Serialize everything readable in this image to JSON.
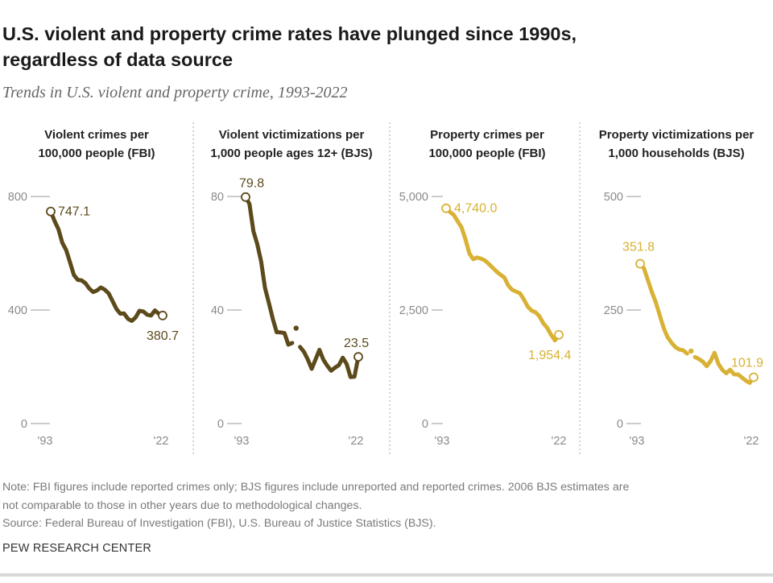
{
  "header": {
    "title_line1": "U.S. violent and property crime rates have plunged since 1990s,",
    "title_line2": "regardless of data source",
    "subtitle": "Trends in U.S. violent and property crime, 1993-2022"
  },
  "colors": {
    "violent": "#5c4a1b",
    "property": "#d8b135",
    "axis": "#9a9a9a",
    "divider": "#aaaaaa"
  },
  "footer": {
    "note_line1": "Note: FBI figures include reported crimes only; BJS figures include unreported and reported crimes. 2006 BJS estimates are",
    "note_line2": "not comparable to those in other years due to methodological changes.",
    "source": "Source: Federal Bureau of Investigation (FBI), U.S. Bureau of Justice Statistics (BJS).",
    "brand": "PEW RESEARCH CENTER"
  },
  "chart_data": [
    {
      "type": "line",
      "title_line1": "Violent crimes per",
      "title_line2": "100,000 people (FBI)",
      "color_key": "violent",
      "xlim": [
        1993,
        2022
      ],
      "x_ticks": [
        "'93",
        "'22"
      ],
      "ylim": [
        0,
        800
      ],
      "y_ticks": [
        {
          "value": 0,
          "label": "0"
        },
        {
          "value": 400,
          "label": "400"
        },
        {
          "value": 800,
          "label": "800"
        }
      ],
      "start_label": "747.1",
      "end_label": "380.7",
      "segments": [
        [
          [
            1993,
            747.1
          ],
          [
            1994,
            713.6
          ],
          [
            1995,
            684.5
          ],
          [
            1996,
            636.6
          ],
          [
            1997,
            611.0
          ],
          [
            1998,
            567.6
          ],
          [
            1999,
            523.0
          ],
          [
            2000,
            506.5
          ],
          [
            2001,
            504.5
          ],
          [
            2002,
            494.4
          ],
          [
            2003,
            475.8
          ],
          [
            2004,
            463.2
          ],
          [
            2005,
            469.0
          ],
          [
            2006,
            479.3
          ],
          [
            2007,
            471.8
          ],
          [
            2008,
            458.6
          ],
          [
            2009,
            431.9
          ],
          [
            2010,
            404.5
          ],
          [
            2011,
            387.1
          ],
          [
            2012,
            387.8
          ],
          [
            2013,
            369.1
          ],
          [
            2014,
            361.6
          ],
          [
            2015,
            373.7
          ],
          [
            2016,
            397.5
          ],
          [
            2017,
            394.9
          ],
          [
            2018,
            383.4
          ],
          [
            2019,
            380.8
          ],
          [
            2020,
            398.5
          ],
          [
            2021,
            387.0
          ],
          [
            2022,
            380.7
          ]
        ]
      ]
    },
    {
      "type": "line",
      "title_line1": "Violent victimizations per",
      "title_line2": "1,000 people ages 12+ (BJS)",
      "color_key": "violent",
      "xlim": [
        1993,
        2022
      ],
      "x_ticks": [
        "'93",
        "'22"
      ],
      "ylim": [
        0,
        80
      ],
      "y_ticks": [
        {
          "value": 0,
          "label": "0"
        },
        {
          "value": 40,
          "label": "40"
        },
        {
          "value": 80,
          "label": "80"
        }
      ],
      "start_label": "79.8",
      "end_label": "23.5",
      "segments": [
        [
          [
            1993,
            79.8
          ],
          [
            1994,
            77.4
          ],
          [
            1995,
            67.8
          ],
          [
            1996,
            63.2
          ],
          [
            1997,
            57.1
          ],
          [
            1998,
            47.8
          ],
          [
            1999,
            42.4
          ],
          [
            2000,
            36.9
          ],
          [
            2001,
            32.2
          ],
          [
            2002,
            32.1
          ],
          [
            2003,
            31.9
          ],
          [
            2004,
            27.8
          ],
          [
            2005,
            28.4
          ]
        ],
        [
          [
            2006,
            33.6
          ]
        ],
        [
          [
            2007,
            27.0
          ],
          [
            2008,
            25.3
          ],
          [
            2009,
            22.6
          ],
          [
            2010,
            19.3
          ],
          [
            2011,
            22.6
          ],
          [
            2012,
            26.0
          ],
          [
            2013,
            22.5
          ],
          [
            2014,
            20.4
          ],
          [
            2015,
            18.6
          ],
          [
            2016,
            19.7
          ],
          [
            2017,
            20.6
          ],
          [
            2018,
            23.2
          ],
          [
            2019,
            21.0
          ],
          [
            2020,
            16.4
          ],
          [
            2021,
            16.5
          ],
          [
            2022,
            23.5
          ]
        ]
      ]
    },
    {
      "type": "line",
      "title_line1": "Property crimes per",
      "title_line2": "100,000 people (FBI)",
      "color_key": "property",
      "xlim": [
        1993,
        2022
      ],
      "x_ticks": [
        "'93",
        "'22"
      ],
      "ylim": [
        0,
        5000
      ],
      "y_ticks": [
        {
          "value": 0,
          "label": "0"
        },
        {
          "value": 2500,
          "label": "2,500"
        },
        {
          "value": 5000,
          "label": "5,000"
        }
      ],
      "start_label": "4,740.0",
      "end_label": "1,954.4",
      "segments": [
        [
          [
            1993,
            4740.0
          ],
          [
            1994,
            4660.2
          ],
          [
            1995,
            4590.5
          ],
          [
            1996,
            4451.0
          ],
          [
            1997,
            4316.3
          ],
          [
            1998,
            4052.5
          ],
          [
            1999,
            3743.6
          ],
          [
            2000,
            3618.3
          ],
          [
            2001,
            3658.1
          ],
          [
            2002,
            3630.6
          ],
          [
            2003,
            3591.2
          ],
          [
            2004,
            3514.1
          ],
          [
            2005,
            3431.5
          ],
          [
            2006,
            3346.6
          ],
          [
            2007,
            3276.4
          ],
          [
            2008,
            3214.6
          ],
          [
            2009,
            3041.3
          ],
          [
            2010,
            2945.9
          ],
          [
            2011,
            2905.4
          ],
          [
            2012,
            2868.0
          ],
          [
            2013,
            2733.6
          ],
          [
            2014,
            2574.1
          ],
          [
            2015,
            2487.0
          ],
          [
            2016,
            2450.7
          ],
          [
            2017,
            2362.2
          ],
          [
            2018,
            2209.8
          ],
          [
            2019,
            2109.9
          ],
          [
            2020,
            1958.2
          ],
          [
            2021,
            1832.3
          ],
          [
            2022,
            1954.4
          ]
        ]
      ]
    },
    {
      "type": "line",
      "title_line1": "Property victimizations per",
      "title_line2": "1,000 households (BJS)",
      "color_key": "property",
      "xlim": [
        1993,
        2022
      ],
      "x_ticks": [
        "'93",
        "'22"
      ],
      "ylim": [
        0,
        500
      ],
      "y_ticks": [
        {
          "value": 0,
          "label": "0"
        },
        {
          "value": 250,
          "label": "250"
        },
        {
          "value": 500,
          "label": "500"
        }
      ],
      "start_label": "351.8",
      "end_label": "101.9",
      "segments": [
        [
          [
            1993,
            351.8
          ],
          [
            1994,
            341.2
          ],
          [
            1995,
            315.5
          ],
          [
            1996,
            289.3
          ],
          [
            1997,
            267.2
          ],
          [
            1998,
            238.9
          ],
          [
            1999,
            210.6
          ],
          [
            2000,
            190.4
          ],
          [
            2001,
            178.1
          ],
          [
            2002,
            168.2
          ],
          [
            2003,
            163.2
          ],
          [
            2004,
            161.1
          ],
          [
            2005,
            154.0
          ]
        ],
        [
          [
            2006,
            159.5
          ]
        ],
        [
          [
            2007,
            146.5
          ],
          [
            2008,
            142.4
          ],
          [
            2009,
            136.1
          ],
          [
            2010,
            126.5
          ],
          [
            2011,
            137.6
          ],
          [
            2012,
            155.8
          ],
          [
            2013,
            131.4
          ],
          [
            2014,
            118.1
          ],
          [
            2015,
            110.7
          ],
          [
            2016,
            118.6
          ],
          [
            2017,
            108.4
          ],
          [
            2018,
            108.2
          ],
          [
            2019,
            101.4
          ],
          [
            2020,
            94.5
          ],
          [
            2021,
            89.5
          ],
          [
            2022,
            101.9
          ]
        ]
      ]
    }
  ]
}
